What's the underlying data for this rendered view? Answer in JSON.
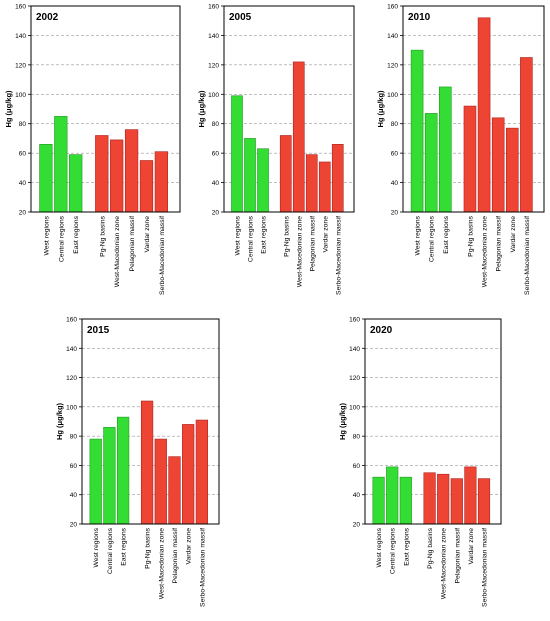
{
  "chart_data": [
    {
      "type": "bar",
      "title": "2002",
      "ylabel": "Hg (μg/kg)",
      "ylim": [
        20,
        160
      ],
      "yticks": [
        20,
        40,
        60,
        80,
        100,
        120,
        140,
        160
      ],
      "grid": true,
      "categories": [
        "West regions",
        "Central regions",
        "East regions",
        "Pg-Ng basins",
        "West-Macedonian zone",
        "Pelagonian massif",
        "Vardar zone",
        "Serbo-Macedonian massif"
      ],
      "values": [
        66,
        85,
        59,
        72,
        69,
        76,
        55,
        61
      ]
    },
    {
      "type": "bar",
      "title": "2005",
      "ylabel": "Hg (μg/kg)",
      "ylim": [
        20,
        160
      ],
      "yticks": [
        20,
        40,
        60,
        80,
        100,
        120,
        140,
        160
      ],
      "grid": true,
      "categories": [
        "West regions",
        "Central regions",
        "East regions",
        "Pg-Ng basins",
        "West-Macedonian zone",
        "Pelagonian massif",
        "Vardar zone",
        "Serbo-Macedonian massif"
      ],
      "values": [
        99,
        70,
        63,
        72,
        122,
        59,
        54,
        66
      ]
    },
    {
      "type": "bar",
      "title": "2010",
      "ylabel": "Hg (μg/kg)",
      "ylim": [
        20,
        160
      ],
      "yticks": [
        20,
        40,
        60,
        80,
        100,
        120,
        140,
        160
      ],
      "grid": true,
      "categories": [
        "West regions",
        "Central regions",
        "East regions",
        "Pg-Ng basins",
        "West-Macedonian zone",
        "Pelagonian massif",
        "Vardar zone",
        "Serbo-Macedonian massif"
      ],
      "values": [
        130,
        87,
        105,
        92,
        152,
        84,
        77,
        125
      ]
    },
    {
      "type": "bar",
      "title": "2015",
      "ylabel": "Hg (μg/kg)",
      "ylim": [
        20,
        160
      ],
      "yticks": [
        20,
        40,
        60,
        80,
        100,
        120,
        140,
        160
      ],
      "grid": true,
      "categories": [
        "West regions",
        "Central regions",
        "East regions",
        "Pg-Ng basins",
        "West-Macedonian zone",
        "Pelagonian massif",
        "Vardar zone",
        "Serbo-Macedonian massif"
      ],
      "values": [
        78,
        86,
        93,
        104,
        78,
        66,
        88,
        91
      ]
    },
    {
      "type": "bar",
      "title": "2020",
      "ylabel": "Hg (μg/kg)",
      "ylim": [
        20,
        160
      ],
      "yticks": [
        20,
        40,
        60,
        80,
        100,
        120,
        140,
        160
      ],
      "grid": true,
      "categories": [
        "West regions",
        "Central regions",
        "East regions",
        "Pg-Ng basins",
        "West-Macedonian zone",
        "Pelagonian massif",
        "Vardar zone",
        "Serbo-Macedonian massif"
      ],
      "values": [
        52,
        59,
        52,
        55,
        54,
        51,
        59,
        51
      ]
    }
  ],
  "colors": {
    "regions": "#33dd33",
    "regions_edge": "#229922",
    "zones": "#ee4433",
    "zones_edge": "#aa2222",
    "grid": "#999999",
    "frame": "#000000"
  }
}
